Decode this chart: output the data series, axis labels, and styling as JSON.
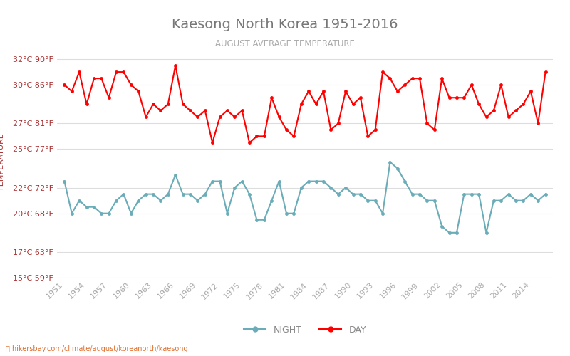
{
  "title": "Kaesong North Korea 1951-2016",
  "subtitle": "AUGUST AVERAGE TEMPERATURE",
  "xlabel": "",
  "ylabel": "TEMPERATURE",
  "footer": "hikersbay.com/climate/august/koreanorth/kaesong",
  "bg_color": "#ffffff",
  "grid_color": "#dddddd",
  "title_color": "#555555",
  "subtitle_color": "#999999",
  "ylabel_color": "#aa3333",
  "tick_color": "#aa3333",
  "years": [
    1951,
    1952,
    1953,
    1954,
    1955,
    1956,
    1957,
    1958,
    1959,
    1960,
    1961,
    1962,
    1963,
    1964,
    1965,
    1966,
    1967,
    1968,
    1969,
    1970,
    1971,
    1972,
    1973,
    1974,
    1975,
    1976,
    1977,
    1978,
    1979,
    1980,
    1981,
    1982,
    1983,
    1984,
    1985,
    1986,
    1987,
    1988,
    1989,
    1990,
    1991,
    1992,
    1993,
    1994,
    1995,
    1996,
    1997,
    1998,
    1999,
    2000,
    2001,
    2002,
    2003,
    2004,
    2005,
    2006,
    2007,
    2008,
    2009,
    2010,
    2011,
    2012,
    2013,
    2014,
    2015,
    2016
  ],
  "day_temps": [
    30.0,
    29.5,
    31.0,
    28.5,
    30.5,
    30.5,
    29.0,
    31.0,
    31.0,
    30.0,
    29.5,
    27.5,
    28.5,
    28.0,
    28.5,
    31.5,
    28.5,
    28.0,
    27.5,
    28.0,
    25.5,
    27.5,
    28.0,
    27.5,
    28.0,
    25.5,
    26.0,
    26.0,
    29.0,
    27.5,
    26.5,
    26.0,
    28.5,
    29.5,
    28.5,
    29.5,
    26.5,
    27.0,
    29.5,
    28.5,
    29.0,
    26.0,
    26.5,
    31.0,
    30.5,
    29.5,
    30.0,
    30.5,
    30.5,
    27.0,
    26.5,
    30.5,
    29.0,
    29.0,
    29.0,
    30.0,
    28.5,
    27.5,
    28.0,
    30.0,
    27.5,
    28.0,
    28.5,
    29.5,
    27.0,
    31.0
  ],
  "night_temps": [
    22.5,
    20.0,
    21.0,
    20.5,
    20.5,
    20.0,
    20.0,
    21.0,
    21.5,
    20.0,
    21.0,
    21.5,
    21.5,
    21.0,
    21.5,
    23.0,
    21.5,
    21.5,
    21.0,
    21.5,
    22.5,
    22.5,
    20.0,
    22.0,
    22.5,
    21.5,
    19.5,
    19.5,
    21.0,
    22.5,
    20.0,
    20.0,
    22.0,
    22.5,
    22.5,
    22.5,
    22.0,
    21.5,
    22.0,
    21.5,
    21.5,
    21.0,
    21.0,
    20.0,
    24.0,
    23.5,
    22.5,
    21.5,
    21.5,
    21.0,
    21.0,
    19.0,
    18.5,
    18.5,
    21.5,
    21.5,
    21.5,
    18.5,
    21.0,
    21.0,
    21.5,
    21.0,
    21.0,
    21.5,
    21.0,
    21.5
  ],
  "ylim_min": 15,
  "ylim_max": 33,
  "yticks_c": [
    15,
    17,
    20,
    22,
    25,
    27,
    30,
    32
  ],
  "yticks_f": [
    59,
    63,
    68,
    72,
    77,
    81,
    86,
    90
  ],
  "day_color": "#ff0000",
  "night_color": "#6aacb8",
  "marker_size": 3.5,
  "line_width": 1.5
}
